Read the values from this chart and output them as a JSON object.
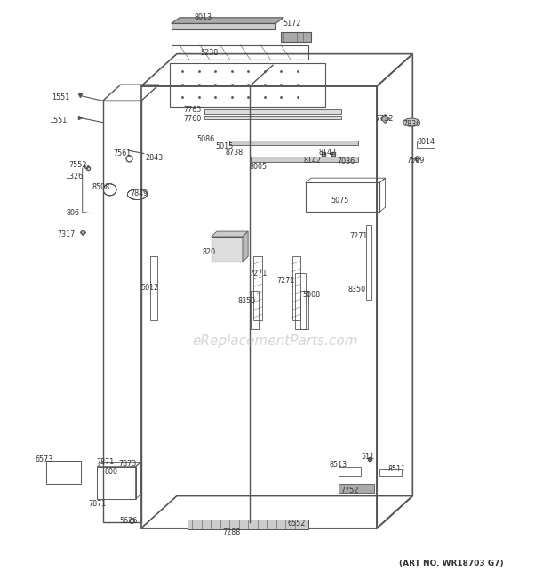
{
  "title": "",
  "background_color": "#ffffff",
  "watermark": "eReplacementParts.com",
  "art_no": "(ART NO. WR18703 G7)",
  "fig_width": 6.2,
  "fig_height": 6.61,
  "dpi": 100,
  "line_color": "#555555",
  "text_color": "#333333",
  "watermark_color": "#bbbbbb"
}
